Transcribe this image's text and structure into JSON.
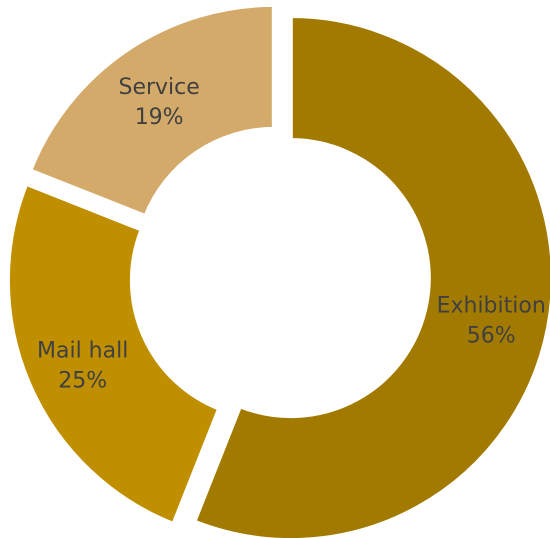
{
  "chart_data": {
    "type": "pie",
    "variant": "donut",
    "slices": [
      {
        "label": "Exhibition",
        "percent_label": "56%",
        "value": 56,
        "color": "#A37A00"
      },
      {
        "label": "Mail hall",
        "percent_label": "25%",
        "value": 25,
        "color": "#BF8F00"
      },
      {
        "label": "Service",
        "percent_label": "19%",
        "value": 19,
        "color": "#D4AA6A"
      }
    ],
    "title": "",
    "legend": "none"
  }
}
